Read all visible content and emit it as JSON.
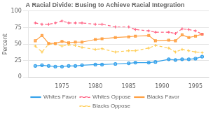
{
  "chart_data": {
    "type": "line",
    "title": "A Racial Divide: Busing to Achieve Racial Integration",
    "ylabel": "Percent",
    "x": [
      1971,
      1972,
      1973,
      1974,
      1975,
      1976,
      1977,
      1978,
      1980,
      1981,
      1983,
      1985,
      1986,
      1988,
      1989,
      1991,
      1992,
      1993,
      1994,
      1995,
      1996
    ],
    "series": [
      {
        "name": "Whites Favor",
        "line_style": "solid",
        "marker": "circle",
        "values": [
          17,
          18,
          17,
          16,
          16,
          17,
          17,
          18,
          19,
          19,
          20,
          21,
          22,
          22,
          23,
          27,
          26,
          27,
          27,
          28,
          31
        ]
      },
      {
        "name": "Whites Oppose",
        "line_style": "dashed",
        "marker": "cross",
        "values": [
          82,
          80,
          80,
          82,
          85,
          82,
          82,
          82,
          80,
          80,
          76,
          76,
          72,
          70,
          68,
          68,
          66,
          73,
          72,
          70,
          65
        ]
      },
      {
        "name": "Blacks Favor",
        "line_style": "solid",
        "marker": "square",
        "values": [
          55,
          63,
          51,
          51,
          54,
          52,
          53,
          53,
          57,
          58,
          60,
          61,
          62,
          63,
          55,
          56,
          55,
          64,
          60,
          62,
          65
        ]
      },
      {
        "name": "Blacks Oppose",
        "line_style": "dashed",
        "marker": "cross",
        "values": [
          47,
          38,
          50,
          50,
          47,
          49,
          48,
          45,
          42,
          43,
          38,
          40,
          40,
          44,
          48,
          44,
          38,
          42,
          40,
          38,
          37
        ]
      }
    ],
    "xlim": [
      1970,
      1997
    ],
    "xticks": [
      1975,
      1980,
      1985,
      1990,
      1995
    ],
    "ylim": [
      0,
      100
    ],
    "yticks": [
      0,
      25,
      50,
      75,
      100
    ],
    "grid": "y",
    "legend": "bottom"
  }
}
